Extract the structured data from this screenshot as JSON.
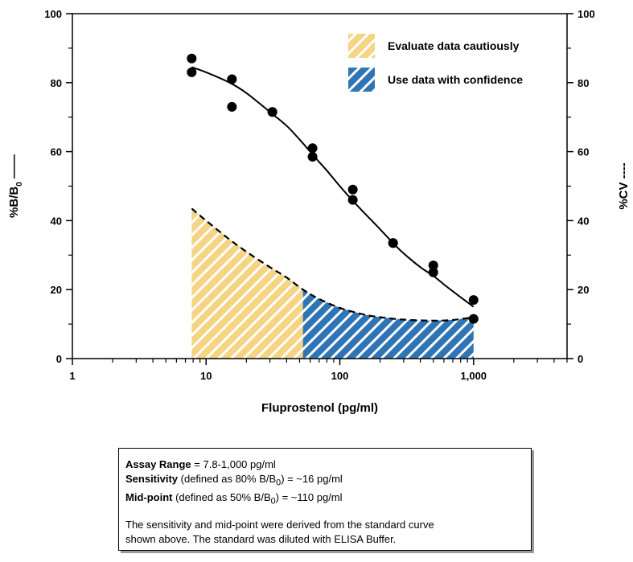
{
  "chart_data": {
    "type": "scatter",
    "x_scale": "log",
    "xlim": [
      1,
      5000
    ],
    "ylim": [
      0,
      100
    ],
    "x_ticks": [
      1,
      10,
      100,
      1000
    ],
    "x_tick_labels": [
      "1",
      "10",
      "100",
      "1,000"
    ],
    "y_ticks": [
      0,
      20,
      40,
      60,
      80,
      100
    ],
    "y_tick_labels": [
      "0",
      "20",
      "40",
      "60",
      "80",
      "100"
    ],
    "y2_tick_labels": [
      "0",
      "20",
      "40",
      "60",
      "80",
      "100"
    ],
    "xlabel": "Fluprostenol (pg/ml)",
    "ylabel_main": "%B/B",
    "ylabel_sub": "0",
    "ylabel_suffix": " ——",
    "y2label": "%CV ----",
    "grid": false,
    "legend_position": "top-right",
    "series": [
      {
        "name": "%B/B0",
        "style": "points",
        "color": "#000000",
        "x": [
          7.8,
          7.8,
          15.6,
          15.6,
          31.3,
          31.3,
          62.5,
          62.5,
          125,
          125,
          250,
          250,
          500,
          500,
          1000,
          1000
        ],
        "y": [
          87,
          83,
          81,
          73,
          71.5,
          71.5,
          61,
          58.5,
          49,
          46,
          33.5,
          33.5,
          27,
          25,
          17,
          11.5
        ]
      },
      {
        "name": "%B/B0 fit",
        "style": "solid-line",
        "color": "#000000",
        "x": [
          7.8,
          10,
          15,
          20,
          30,
          40,
          50,
          60,
          70,
          80,
          100,
          120,
          150,
          200,
          250,
          300,
          400,
          500,
          600,
          700,
          800,
          1000
        ],
        "y": [
          84.5,
          83,
          80,
          77,
          71.5,
          67.5,
          63.5,
          60,
          57,
          54.5,
          50,
          46.5,
          42.5,
          37.5,
          33.5,
          30.5,
          26.5,
          24,
          21.5,
          19.5,
          17.8,
          15
        ]
      },
      {
        "name": "%CV",
        "style": "dashed-line",
        "color": "#000000",
        "x": [
          7.8,
          10,
          15,
          20,
          30,
          40,
          53,
          70,
          100,
          150,
          200,
          300,
          500,
          700,
          1000
        ],
        "y": [
          43.5,
          40,
          34.5,
          31,
          26.5,
          23.5,
          20,
          17.3,
          14.7,
          12.8,
          12,
          11.3,
          11,
          11.2,
          12
        ]
      }
    ],
    "shaded_regions": [
      {
        "label": "Evaluate data cautiously",
        "x_from": 7.8,
        "x_to": 53,
        "color": "#f5d483"
      },
      {
        "label": "Use data with confidence",
        "x_from": 53,
        "x_to": 1000,
        "color": "#2f74b5"
      }
    ]
  },
  "info_box": {
    "line1_bold": "Assay Range",
    "line1_rest": " = 7.8-1,000 pg/ml",
    "line2_bold": "Sensitivity",
    "line2_mid": " (defined as 80% B/B",
    "line2_sub": "0",
    "line2_end": ") =  ~16 pg/ml",
    "line3_bold": "Mid-point",
    "line3_mid": " (defined as 50% B/B",
    "line3_sub": "0",
    "line3_end": ") =  ~110 pg/ml",
    "note_line1": "The sensitivity and mid-point were derived from the standard curve",
    "note_line2": "shown above. The standard was diluted with ELISA Buffer."
  }
}
